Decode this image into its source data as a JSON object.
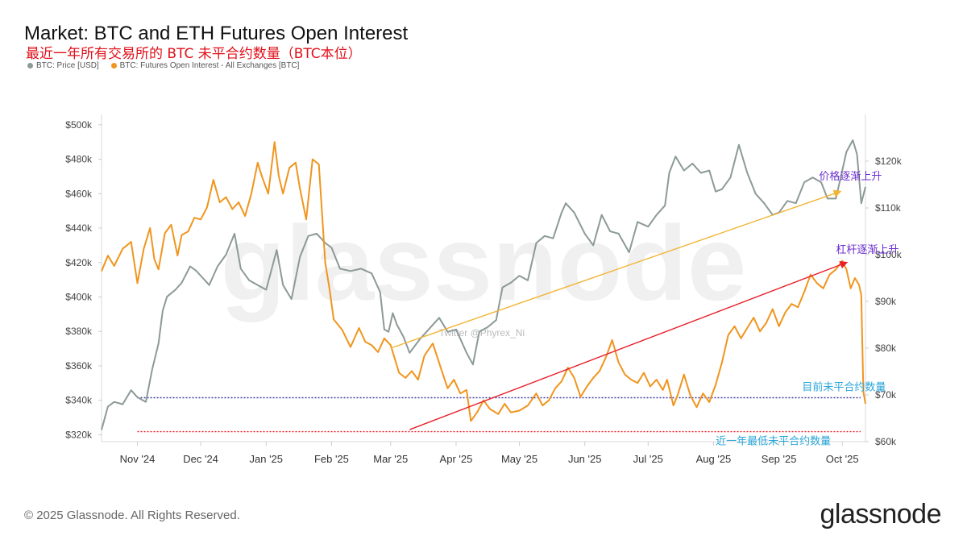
{
  "header": {
    "title": "Market: BTC and ETH Futures Open Interest",
    "subtitle": "最近一年所有交易所的 BTC 未平合约数量（BTC本位）"
  },
  "footer": {
    "copyright": "© 2025 Glassnode. All Rights Reserved.",
    "logo_text": "glassnode"
  },
  "watermark": {
    "text": "glassnode",
    "twitter": "Twitter @Phyrex_Ni"
  },
  "colors": {
    "price": "#8c9a98",
    "open_interest": "#f0951e",
    "trend_price": "#f2b434",
    "trend_oi": "#e8202a",
    "current_line": "#3b3ba0",
    "min_line": "#e8202a",
    "label_purple": "#6b2fd0",
    "label_cyan": "#2aa6d8"
  },
  "chart_data": {
    "type": "line",
    "title": "Market: BTC and ETH Futures Open Interest",
    "legend_position": "top-left",
    "grid": false,
    "x_range": [
      "2024-10-15",
      "2025-10-12"
    ],
    "x_ticks": [
      {
        "date": "2024-11-01",
        "label": "Nov '24"
      },
      {
        "date": "2024-12-01",
        "label": "Dec '24"
      },
      {
        "date": "2025-01-01",
        "label": "Jan '25"
      },
      {
        "date": "2025-02-01",
        "label": "Feb '25"
      },
      {
        "date": "2025-03-01",
        "label": "Mar '25"
      },
      {
        "date": "2025-04-01",
        "label": "Apr '25"
      },
      {
        "date": "2025-05-01",
        "label": "May '25"
      },
      {
        "date": "2025-06-01",
        "label": "Jun '25"
      },
      {
        "date": "2025-07-01",
        "label": "Jul '25"
      },
      {
        "date": "2025-08-01",
        "label": "Aug '25"
      },
      {
        "date": "2025-09-01",
        "label": "Sep '25"
      },
      {
        "date": "2025-10-01",
        "label": "Oct '25"
      }
    ],
    "y_left": {
      "range": [
        316000,
        506000
      ],
      "ticks": [
        320000,
        340000,
        360000,
        380000,
        400000,
        420000,
        440000,
        460000,
        480000,
        500000
      ],
      "tick_labels": [
        "$320k",
        "$340k",
        "$360k",
        "$380k",
        "$400k",
        "$420k",
        "$440k",
        "$460k",
        "$480k",
        "$500k"
      ]
    },
    "y_right": {
      "range": [
        60000,
        130000
      ],
      "ticks": [
        60000,
        70000,
        80000,
        90000,
        100000,
        110000,
        120000
      ],
      "tick_labels": [
        "$60k",
        "$70k",
        "$80k",
        "$90k",
        "$100k",
        "$110k",
        "$120k"
      ]
    },
    "series": [
      {
        "name": "BTC: Price [USD]",
        "axis": "right",
        "points": [
          [
            "2024-10-15",
            62500
          ],
          [
            "2024-10-18",
            67500
          ],
          [
            "2024-10-21",
            68500
          ],
          [
            "2024-10-25",
            68000
          ],
          [
            "2024-10-29",
            71000
          ],
          [
            "2024-11-01",
            69500
          ],
          [
            "2024-11-05",
            68500
          ],
          [
            "2024-11-08",
            75500
          ],
          [
            "2024-11-11",
            81000
          ],
          [
            "2024-11-13",
            88000
          ],
          [
            "2024-11-15",
            91000
          ],
          [
            "2024-11-19",
            92500
          ],
          [
            "2024-11-22",
            94000
          ],
          [
            "2024-11-26",
            97500
          ],
          [
            "2024-11-29",
            96500
          ],
          [
            "2024-12-02",
            95000
          ],
          [
            "2024-12-05",
            93500
          ],
          [
            "2024-12-09",
            97500
          ],
          [
            "2024-12-13",
            100000
          ],
          [
            "2024-12-17",
            104500
          ],
          [
            "2024-12-20",
            97000
          ],
          [
            "2024-12-24",
            94500
          ],
          [
            "2024-12-28",
            93500
          ],
          [
            "2025-01-01",
            92500
          ],
          [
            "2025-01-06",
            101000
          ],
          [
            "2025-01-09",
            93500
          ],
          [
            "2025-01-13",
            90500
          ],
          [
            "2025-01-17",
            99500
          ],
          [
            "2025-01-21",
            104000
          ],
          [
            "2025-01-25",
            104500
          ],
          [
            "2025-01-29",
            102500
          ],
          [
            "2025-02-01",
            101500
          ],
          [
            "2025-02-05",
            97000
          ],
          [
            "2025-02-10",
            96500
          ],
          [
            "2025-02-15",
            97000
          ],
          [
            "2025-02-20",
            96000
          ],
          [
            "2025-02-24",
            92000
          ],
          [
            "2025-02-26",
            84000
          ],
          [
            "2025-02-28",
            83500
          ],
          [
            "2025-03-02",
            87500
          ],
          [
            "2025-03-04",
            85000
          ],
          [
            "2025-03-07",
            82500
          ],
          [
            "2025-03-10",
            79000
          ],
          [
            "2025-03-15",
            82000
          ],
          [
            "2025-03-20",
            84500
          ],
          [
            "2025-03-24",
            86500
          ],
          [
            "2025-03-28",
            83500
          ],
          [
            "2025-04-01",
            84000
          ],
          [
            "2025-04-06",
            79000
          ],
          [
            "2025-04-09",
            76500
          ],
          [
            "2025-04-12",
            83500
          ],
          [
            "2025-04-16",
            84500
          ],
          [
            "2025-04-20",
            86000
          ],
          [
            "2025-04-23",
            93000
          ],
          [
            "2025-04-27",
            94000
          ],
          [
            "2025-05-01",
            95500
          ],
          [
            "2025-05-05",
            94500
          ],
          [
            "2025-05-09",
            102500
          ],
          [
            "2025-05-13",
            104000
          ],
          [
            "2025-05-17",
            103500
          ],
          [
            "2025-05-21",
            109000
          ],
          [
            "2025-05-23",
            111000
          ],
          [
            "2025-05-27",
            109000
          ],
          [
            "2025-06-01",
            104500
          ],
          [
            "2025-06-05",
            102000
          ],
          [
            "2025-06-09",
            108500
          ],
          [
            "2025-06-13",
            105000
          ],
          [
            "2025-06-17",
            104500
          ],
          [
            "2025-06-22",
            100500
          ],
          [
            "2025-06-26",
            107000
          ],
          [
            "2025-07-01",
            106000
          ],
          [
            "2025-07-05",
            108500
          ],
          [
            "2025-07-09",
            110500
          ],
          [
            "2025-07-11",
            117500
          ],
          [
            "2025-07-14",
            121000
          ],
          [
            "2025-07-18",
            118000
          ],
          [
            "2025-07-22",
            119500
          ],
          [
            "2025-07-26",
            117500
          ],
          [
            "2025-07-30",
            118000
          ],
          [
            "2025-08-02",
            113500
          ],
          [
            "2025-08-05",
            114000
          ],
          [
            "2025-08-09",
            116500
          ],
          [
            "2025-08-13",
            123500
          ],
          [
            "2025-08-17",
            117500
          ],
          [
            "2025-08-21",
            113000
          ],
          [
            "2025-08-25",
            111000
          ],
          [
            "2025-08-29",
            108500
          ],
          [
            "2025-09-01",
            109000
          ],
          [
            "2025-09-05",
            111500
          ],
          [
            "2025-09-09",
            111000
          ],
          [
            "2025-09-13",
            115500
          ],
          [
            "2025-09-17",
            116500
          ],
          [
            "2025-09-21",
            115500
          ],
          [
            "2025-09-24",
            112000
          ],
          [
            "2025-09-28",
            112000
          ],
          [
            "2025-10-01",
            118000
          ],
          [
            "2025-10-03",
            122000
          ],
          [
            "2025-10-06",
            124500
          ],
          [
            "2025-10-08",
            121500
          ],
          [
            "2025-10-10",
            111000
          ],
          [
            "2025-10-12",
            114500
          ]
        ]
      },
      {
        "name": "BTC: Futures Open Interest - All Exchanges [BTC]",
        "axis": "left",
        "points": [
          [
            "2024-10-15",
            415000
          ],
          [
            "2024-10-18",
            424000
          ],
          [
            "2024-10-21",
            418000
          ],
          [
            "2024-10-25",
            428000
          ],
          [
            "2024-10-29",
            432000
          ],
          [
            "2024-11-01",
            408000
          ],
          [
            "2024-11-04",
            428000
          ],
          [
            "2024-11-07",
            440000
          ],
          [
            "2024-11-09",
            422000
          ],
          [
            "2024-11-11",
            416000
          ],
          [
            "2024-11-14",
            437000
          ],
          [
            "2024-11-17",
            442000
          ],
          [
            "2024-11-20",
            424000
          ],
          [
            "2024-11-22",
            436000
          ],
          [
            "2024-11-25",
            438000
          ],
          [
            "2024-11-28",
            446000
          ],
          [
            "2024-12-01",
            445000
          ],
          [
            "2024-12-04",
            452000
          ],
          [
            "2024-12-07",
            468000
          ],
          [
            "2024-12-10",
            455000
          ],
          [
            "2024-12-13",
            458000
          ],
          [
            "2024-12-16",
            451000
          ],
          [
            "2024-12-19",
            455000
          ],
          [
            "2024-12-22",
            447000
          ],
          [
            "2024-12-25",
            460000
          ],
          [
            "2024-12-28",
            478000
          ],
          [
            "2024-12-30",
            470000
          ],
          [
            "2025-01-02",
            460000
          ],
          [
            "2025-01-05",
            490000
          ],
          [
            "2025-01-07",
            470000
          ],
          [
            "2025-01-09",
            460000
          ],
          [
            "2025-01-12",
            475000
          ],
          [
            "2025-01-15",
            478000
          ],
          [
            "2025-01-17",
            463000
          ],
          [
            "2025-01-20",
            445000
          ],
          [
            "2025-01-23",
            480000
          ],
          [
            "2025-01-26",
            477000
          ],
          [
            "2025-01-29",
            420000
          ],
          [
            "2025-01-31",
            405000
          ],
          [
            "2025-02-02",
            387000
          ],
          [
            "2025-02-06",
            381000
          ],
          [
            "2025-02-10",
            371000
          ],
          [
            "2025-02-14",
            382000
          ],
          [
            "2025-02-17",
            374000
          ],
          [
            "2025-02-20",
            372000
          ],
          [
            "2025-02-23",
            368000
          ],
          [
            "2025-02-26",
            376000
          ],
          [
            "2025-03-01",
            372000
          ],
          [
            "2025-03-05",
            356000
          ],
          [
            "2025-03-08",
            353000
          ],
          [
            "2025-03-11",
            357000
          ],
          [
            "2025-03-14",
            352000
          ],
          [
            "2025-03-17",
            366000
          ],
          [
            "2025-03-21",
            373000
          ],
          [
            "2025-03-25",
            358000
          ],
          [
            "2025-03-28",
            347000
          ],
          [
            "2025-03-31",
            352000
          ],
          [
            "2025-04-03",
            344000
          ],
          [
            "2025-04-06",
            346000
          ],
          [
            "2025-04-08",
            328000
          ],
          [
            "2025-04-11",
            333000
          ],
          [
            "2025-04-14",
            340000
          ],
          [
            "2025-04-17",
            335000
          ],
          [
            "2025-04-21",
            332000
          ],
          [
            "2025-04-24",
            338000
          ],
          [
            "2025-04-27",
            333000
          ],
          [
            "2025-05-01",
            334000
          ],
          [
            "2025-05-05",
            337000
          ],
          [
            "2025-05-09",
            344000
          ],
          [
            "2025-05-12",
            337000
          ],
          [
            "2025-05-15",
            340000
          ],
          [
            "2025-05-18",
            347000
          ],
          [
            "2025-05-21",
            351000
          ],
          [
            "2025-05-24",
            359000
          ],
          [
            "2025-05-27",
            353000
          ],
          [
            "2025-05-30",
            342000
          ],
          [
            "2025-06-02",
            348000
          ],
          [
            "2025-06-05",
            353000
          ],
          [
            "2025-06-08",
            357000
          ],
          [
            "2025-06-11",
            365000
          ],
          [
            "2025-06-14",
            375000
          ],
          [
            "2025-06-17",
            362000
          ],
          [
            "2025-06-20",
            355000
          ],
          [
            "2025-06-23",
            352000
          ],
          [
            "2025-06-26",
            350000
          ],
          [
            "2025-06-29",
            356000
          ],
          [
            "2025-07-02",
            348000
          ],
          [
            "2025-07-05",
            352000
          ],
          [
            "2025-07-08",
            346000
          ],
          [
            "2025-07-10",
            352000
          ],
          [
            "2025-07-13",
            337000
          ],
          [
            "2025-07-15",
            343000
          ],
          [
            "2025-07-18",
            355000
          ],
          [
            "2025-07-21",
            343000
          ],
          [
            "2025-07-24",
            336000
          ],
          [
            "2025-07-27",
            344000
          ],
          [
            "2025-07-30",
            339000
          ],
          [
            "2025-08-02",
            349000
          ],
          [
            "2025-08-05",
            362000
          ],
          [
            "2025-08-08",
            378000
          ],
          [
            "2025-08-11",
            383000
          ],
          [
            "2025-08-14",
            376000
          ],
          [
            "2025-08-17",
            382000
          ],
          [
            "2025-08-20",
            388000
          ],
          [
            "2025-08-23",
            380000
          ],
          [
            "2025-08-26",
            385000
          ],
          [
            "2025-08-29",
            393000
          ],
          [
            "2025-09-01",
            383000
          ],
          [
            "2025-09-04",
            391000
          ],
          [
            "2025-09-07",
            396000
          ],
          [
            "2025-09-10",
            394000
          ],
          [
            "2025-09-13",
            403000
          ],
          [
            "2025-09-16",
            413000
          ],
          [
            "2025-09-19",
            408000
          ],
          [
            "2025-09-22",
            405000
          ],
          [
            "2025-09-25",
            413000
          ],
          [
            "2025-09-28",
            416000
          ],
          [
            "2025-10-01",
            421000
          ],
          [
            "2025-10-03",
            416000
          ],
          [
            "2025-10-05",
            405000
          ],
          [
            "2025-10-07",
            411000
          ],
          [
            "2025-10-09",
            407000
          ],
          [
            "2025-10-10",
            401000
          ],
          [
            "2025-10-11",
            345000
          ],
          [
            "2025-10-12",
            338000
          ]
        ]
      }
    ],
    "annotations": [
      {
        "id": "price-trend",
        "type": "arrow",
        "axis": "right",
        "from": [
          "2025-03-01",
          80000
        ],
        "to": [
          "2025-09-30",
          113500
        ],
        "label": "价格逐渐上升",
        "label_at": [
          "2025-09-20",
          116000
        ]
      },
      {
        "id": "oi-trend",
        "type": "arrow",
        "axis": "left",
        "from": [
          "2025-03-10",
          323000
        ],
        "to": [
          "2025-10-03",
          420000
        ],
        "label": "杠杆逐渐上升",
        "label_at": [
          "2025-09-28",
          425500
        ]
      },
      {
        "id": "current-oi",
        "type": "hline",
        "axis": "left",
        "y": 341500,
        "from_date": "2024-11-01",
        "label": "目前未平合约数量",
        "label_at": [
          "2025-09-12",
          345800
        ]
      },
      {
        "id": "min-oi",
        "type": "hline",
        "axis": "left",
        "y": 321800,
        "from_date": "2024-11-01",
        "label": "近一年最低未平合约数量",
        "label_at": [
          "2025-08-02",
          314400
        ]
      }
    ]
  }
}
